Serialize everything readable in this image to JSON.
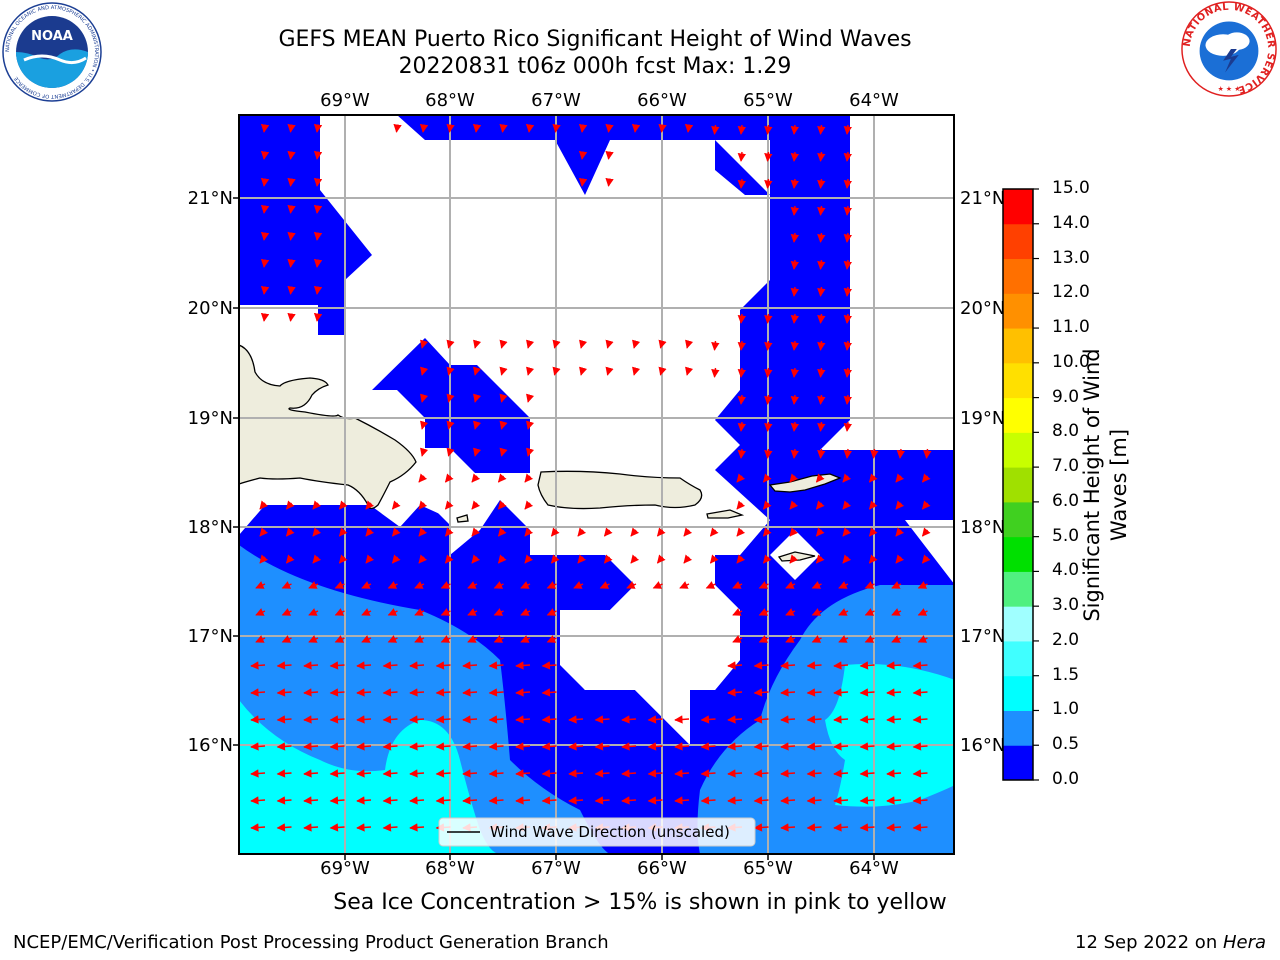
{
  "title_line1": "GEFS MEAN Puerto Rico Significant Height of Wind Waves",
  "title_line2": "20220831 t06z 000h fcst   Max: 1.29",
  "lon_labels": [
    "69°W",
    "68°W",
    "67°W",
    "66°W",
    "65°W",
    "64°W"
  ],
  "lat_labels": [
    "21°N",
    "20°N",
    "19°N",
    "18°N",
    "17°N",
    "16°N"
  ],
  "legend_text": "Wind Wave Direction (unscaled)",
  "colorbar": {
    "title": "Significant Height of Wind Waves [m]",
    "tick_labels": [
      "0.0",
      "0.5",
      "1.0",
      "1.5",
      "2.0",
      "3.0",
      "4.0",
      "5.0",
      "6.0",
      "7.0",
      "8.0",
      "9.0",
      "10.0",
      "11.0",
      "12.0",
      "13.0",
      "14.0",
      "15.0"
    ],
    "colors": [
      "#0000ff",
      "#1e8fff",
      "#00ffff",
      "#40ffff",
      "#a0ffff",
      "#50f080",
      "#00e000",
      "#40d020",
      "#a0e000",
      "#c8ff00",
      "#ffff00",
      "#ffe000",
      "#ffc000",
      "#ff9000",
      "#ff7000",
      "#ff4000",
      "#ff0000"
    ]
  },
  "land_color": "#eeeddd",
  "arrow_color": "#ff0000",
  "subcaption": "Sea Ice Concentration > 15% is shown in pink to yellow",
  "footer_left": "NCEP/EMC/Verification Post Processing Product Generation Branch",
  "footer_date": "12 Sep 2022 on ",
  "footer_host": "Hera",
  "logos": {
    "left": "NOAA",
    "left_ring": "NATIONAL OCEANIC AND ATMOSPHERIC ADMINISTRATION • U.S. DEPARTMENT OF COMMERCE",
    "right_ring": "NATIONAL WEATHER SERVICE"
  }
}
